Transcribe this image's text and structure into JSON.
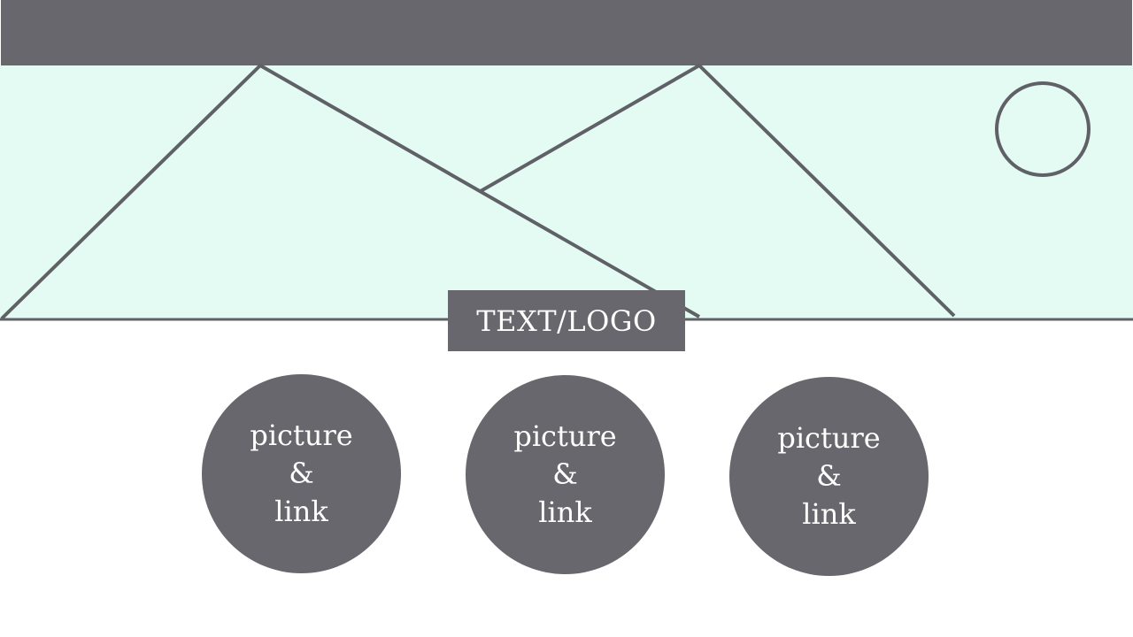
{
  "colors": {
    "bar": "#67676d",
    "hero_bg": "#e3fbf2",
    "line": "#5f6166",
    "circle_fill": "#67676d",
    "text_light": "#ffffff",
    "page_bg": "#ffffff"
  },
  "header": {
    "logo_text": "TEXT/LOGO"
  },
  "links": [
    {
      "line1": "picture",
      "line2": "&",
      "line3": "link"
    },
    {
      "line1": "picture",
      "line2": "&",
      "line3": "link"
    },
    {
      "line1": "picture",
      "line2": "&",
      "line3": "link"
    }
  ]
}
